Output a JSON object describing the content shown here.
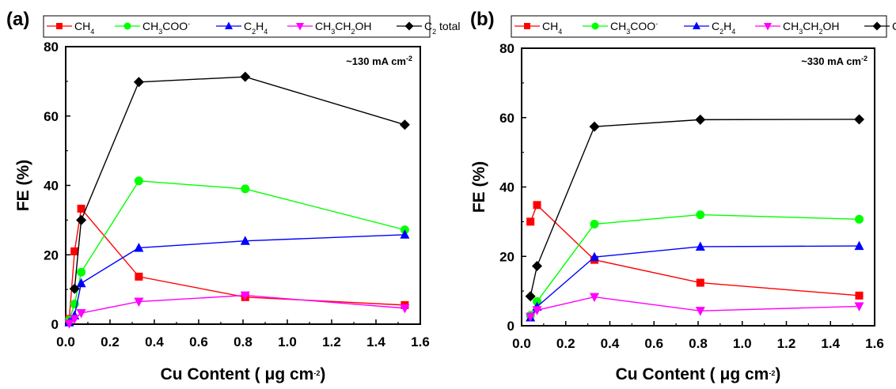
{
  "figure": {
    "legend": [
      {
        "key": "ch4",
        "parts": [
          [
            "CH",
            ""
          ],
          [
            "4",
            "sub"
          ]
        ],
        "color": "#ff0000",
        "marker": "square"
      },
      {
        "key": "ac",
        "parts": [
          [
            "CH",
            ""
          ],
          [
            "3",
            "sub"
          ],
          [
            "COO",
            ""
          ],
          [
            "-",
            "sup"
          ]
        ],
        "color": "#00ff00",
        "marker": "circle"
      },
      {
        "key": "c2h4",
        "parts": [
          [
            "C",
            ""
          ],
          [
            "2",
            "sub"
          ],
          [
            "H",
            ""
          ],
          [
            "4",
            "sub"
          ]
        ],
        "color": "#0000ff",
        "marker": "triangle-up"
      },
      {
        "key": "etoh",
        "parts": [
          [
            "CH",
            ""
          ],
          [
            "3",
            "sub"
          ],
          [
            "CH",
            ""
          ],
          [
            "2",
            "sub"
          ],
          [
            "OH",
            ""
          ]
        ],
        "color": "#ff00ff",
        "marker": "triangle-down"
      },
      {
        "key": "c2",
        "parts": [
          [
            "C",
            ""
          ],
          [
            "2",
            "sub"
          ],
          [
            " total",
            ""
          ]
        ],
        "color": "#000000",
        "marker": "diamond"
      }
    ],
    "xlabel_parts": [
      [
        "Cu Content ( ",
        ""
      ],
      [
        "μ",
        ""
      ],
      [
        "g cm",
        ""
      ],
      [
        "-2",
        "sup"
      ],
      [
        ")",
        ""
      ]
    ],
    "ylabel": "FE (%)"
  },
  "chart_data": [
    {
      "type": "line",
      "panel": "(a)",
      "annotation_parts": [
        [
          "~130 mA cm",
          ""
        ],
        [
          "-2",
          "sup"
        ]
      ],
      "xlim": [
        0,
        1.6
      ],
      "ylim": [
        0,
        80
      ],
      "xticks": [
        "0.0",
        "0.2",
        "0.4",
        "0.6",
        "0.8",
        "1.0",
        "1.2",
        "1.4",
        "1.6"
      ],
      "yticks": [
        "0",
        "20",
        "40",
        "60",
        "80"
      ],
      "series": [
        {
          "key": "ch4",
          "name": "CH4",
          "color": "#ff0000",
          "marker": "square",
          "x": [
            0.016,
            0.04,
            0.07,
            0.33,
            0.81,
            1.53
          ],
          "y": [
            1.5,
            21,
            33.3,
            13.7,
            7.8,
            5.5
          ]
        },
        {
          "key": "ac",
          "name": "CH3COO-",
          "color": "#00ff00",
          "marker": "circle",
          "x": [
            0.016,
            0.04,
            0.07,
            0.33,
            0.81,
            1.53
          ],
          "y": [
            1.2,
            5.8,
            15,
            41.3,
            39,
            27.2
          ]
        },
        {
          "key": "c2h4",
          "name": "C2H4",
          "color": "#0000ff",
          "marker": "triangle-up",
          "x": [
            0.016,
            0.04,
            0.07,
            0.33,
            0.81,
            1.53
          ],
          "y": [
            0.5,
            2.5,
            11.8,
            22,
            24,
            25.8
          ]
        },
        {
          "key": "etoh",
          "name": "CH3CH2OH",
          "color": "#ff00ff",
          "marker": "triangle-down",
          "x": [
            0.016,
            0.04,
            0.07,
            0.33,
            0.81,
            1.53
          ],
          "y": [
            0.2,
            1.5,
            3.2,
            6.5,
            8.3,
            4.6
          ]
        },
        {
          "key": "c2",
          "name": "C2 total",
          "color": "#000000",
          "marker": "diamond",
          "x": [
            0.04,
            0.07,
            0.33,
            0.81,
            1.53
          ],
          "y": [
            10.2,
            30,
            69.8,
            71.3,
            57.5
          ]
        }
      ]
    },
    {
      "type": "line",
      "panel": "(b)",
      "annotation_parts": [
        [
          "~330 mA cm",
          ""
        ],
        [
          "-2",
          "sup"
        ]
      ],
      "xlim": [
        0,
        1.6
      ],
      "ylim": [
        0,
        80
      ],
      "xticks": [
        "0.0",
        "0.2",
        "0.4",
        "0.6",
        "0.8",
        "1.0",
        "1.2",
        "1.4",
        "1.6"
      ],
      "yticks": [
        "0",
        "20",
        "40",
        "60",
        "80"
      ],
      "series": [
        {
          "key": "ch4",
          "name": "CH4",
          "color": "#ff0000",
          "marker": "square",
          "x": [
            0.04,
            0.07,
            0.33,
            0.81,
            1.53
          ],
          "y": [
            30,
            34.8,
            19,
            12.4,
            8.7
          ]
        },
        {
          "key": "ac",
          "name": "CH3COO-",
          "color": "#00ff00",
          "marker": "circle",
          "x": [
            0.04,
            0.07,
            0.33,
            0.81,
            1.53
          ],
          "y": [
            3,
            7,
            29.3,
            32,
            30.7
          ]
        },
        {
          "key": "c2h4",
          "name": "C2H4",
          "color": "#0000ff",
          "marker": "triangle-up",
          "x": [
            0.04,
            0.07,
            0.33,
            0.81,
            1.53
          ],
          "y": [
            2.4,
            5.5,
            19.8,
            22.8,
            23
          ]
        },
        {
          "key": "etoh",
          "name": "CH3CH2OH",
          "color": "#ff00ff",
          "marker": "triangle-down",
          "x": [
            0.04,
            0.07,
            0.33,
            0.81,
            1.53
          ],
          "y": [
            2.6,
            4.5,
            8.3,
            4.3,
            5.6
          ]
        },
        {
          "key": "c2",
          "name": "C2 total",
          "color": "#000000",
          "marker": "diamond",
          "x": [
            0.04,
            0.07,
            0.33,
            0.81,
            1.53
          ],
          "y": [
            8.5,
            17.2,
            57.4,
            59.4,
            59.5
          ]
        }
      ]
    }
  ]
}
